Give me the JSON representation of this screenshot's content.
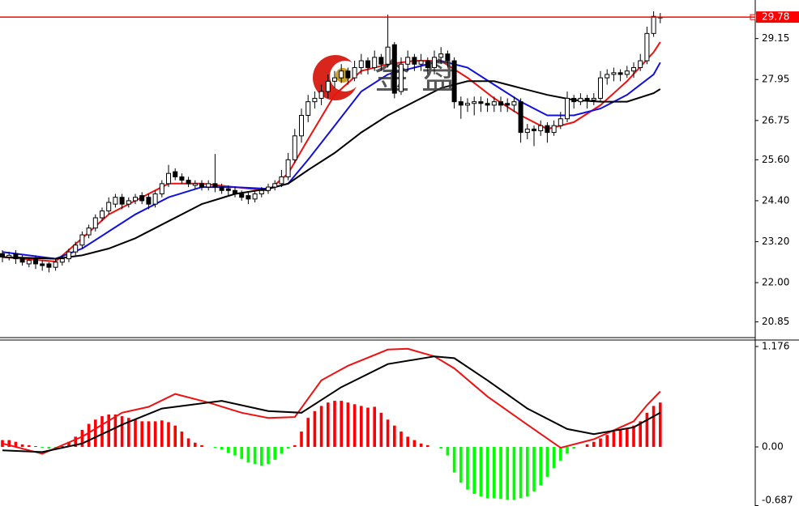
{
  "chart_data": [
    {
      "type": "candlestick",
      "open": [
        22.85,
        22.75,
        22.85,
        22.7,
        22.55,
        22.7,
        22.55,
        22.55,
        22.45,
        22.6,
        22.7,
        22.9,
        23.1,
        23.4,
        23.6,
        23.9,
        24.1,
        24.3,
        24.5,
        24.3,
        24.4,
        24.55,
        24.5,
        24.3,
        24.6,
        24.9,
        25.25,
        25.1,
        25.0,
        24.85,
        24.9,
        24.8,
        24.9,
        24.8,
        24.75,
        24.7,
        24.6,
        24.55,
        24.45,
        24.6,
        24.7,
        24.8,
        24.9,
        25.1,
        25.6,
        26.3,
        26.9,
        27.3,
        27.4,
        27.6,
        27.9,
        28.0,
        28.2,
        28.0,
        28.3,
        28.5,
        28.3,
        28.6,
        28.4,
        28.97,
        27.6,
        28.4,
        28.6,
        28.4,
        28.5,
        28.3,
        28.6,
        28.7,
        28.5,
        27.3,
        27.2,
        27.25,
        27.3,
        27.25,
        27.2,
        27.3,
        27.25,
        27.2,
        27.3,
        26.4,
        26.5,
        26.45,
        26.6,
        26.4,
        26.6,
        26.8,
        27.4,
        27.3,
        27.4,
        27.35,
        27.4,
        28.0,
        28.1,
        28.15,
        28.1,
        28.2,
        28.3,
        28.5,
        29.3,
        29.78
      ],
      "high": [
        22.95,
        22.9,
        22.95,
        22.8,
        22.75,
        22.8,
        22.65,
        22.6,
        22.7,
        22.8,
        23.0,
        23.2,
        23.5,
        23.7,
        24.0,
        24.2,
        24.5,
        24.6,
        24.6,
        24.5,
        24.6,
        24.65,
        24.6,
        24.7,
        25.0,
        25.45,
        25.35,
        25.2,
        25.1,
        25.0,
        25.0,
        25.0,
        25.77,
        24.9,
        24.85,
        24.8,
        24.7,
        24.65,
        24.7,
        24.8,
        24.9,
        25.0,
        25.3,
        25.8,
        26.5,
        27.1,
        27.5,
        27.6,
        27.8,
        28.1,
        28.2,
        28.4,
        28.3,
        28.5,
        28.7,
        28.6,
        28.8,
        28.7,
        29.85,
        29.05,
        28.6,
        28.8,
        28.7,
        28.7,
        28.6,
        28.8,
        28.9,
        28.8,
        28.6,
        27.45,
        27.4,
        27.45,
        27.45,
        27.4,
        27.45,
        27.45,
        27.4,
        27.45,
        27.4,
        26.65,
        26.6,
        26.75,
        26.7,
        26.75,
        27.0,
        27.6,
        27.5,
        27.55,
        27.5,
        27.55,
        28.2,
        28.25,
        28.3,
        28.25,
        28.35,
        28.45,
        28.7,
        29.5,
        29.95,
        29.9
      ],
      "low": [
        22.6,
        22.65,
        22.55,
        22.5,
        22.45,
        22.4,
        22.35,
        22.3,
        22.35,
        22.5,
        22.6,
        22.8,
        23.0,
        23.3,
        23.5,
        23.8,
        24.0,
        24.2,
        24.15,
        24.2,
        24.3,
        24.3,
        24.15,
        24.2,
        24.5,
        24.8,
        25.0,
        24.9,
        24.8,
        24.75,
        24.7,
        24.7,
        24.65,
        24.6,
        24.55,
        24.5,
        24.4,
        24.3,
        24.35,
        24.5,
        24.6,
        24.7,
        24.8,
        25.0,
        25.5,
        26.1,
        26.7,
        27.1,
        27.2,
        27.4,
        27.7,
        27.85,
        27.8,
        27.9,
        28.1,
        28.1,
        28.2,
        28.2,
        28.3,
        27.4,
        27.5,
        28.2,
        28.2,
        28.2,
        28.1,
        28.1,
        28.4,
        28.3,
        27.1,
        26.8,
        27.0,
        26.9,
        27.0,
        27.0,
        27.0,
        27.0,
        27.0,
        27.0,
        26.1,
        26.2,
        26.0,
        26.3,
        26.1,
        26.3,
        26.5,
        26.7,
        27.1,
        27.2,
        27.1,
        27.2,
        27.3,
        27.8,
        27.9,
        27.9,
        28.0,
        28.0,
        28.2,
        28.4,
        29.2,
        29.6
      ],
      "close": [
        22.75,
        22.8,
        22.7,
        22.6,
        22.65,
        22.55,
        22.5,
        22.45,
        22.6,
        22.7,
        22.9,
        23.1,
        23.4,
        23.6,
        23.9,
        24.1,
        24.35,
        24.5,
        24.3,
        24.4,
        24.5,
        24.4,
        24.3,
        24.6,
        24.9,
        25.2,
        25.1,
        25.0,
        24.9,
        24.9,
        24.8,
        24.9,
        24.8,
        24.7,
        24.7,
        24.6,
        24.5,
        24.45,
        24.6,
        24.7,
        24.8,
        24.9,
        25.1,
        25.6,
        26.3,
        26.9,
        27.3,
        27.4,
        27.6,
        27.9,
        28.0,
        28.2,
        28.0,
        28.3,
        28.5,
        28.3,
        28.6,
        28.4,
        28.9,
        27.55,
        28.4,
        28.6,
        28.4,
        28.5,
        28.3,
        28.6,
        28.7,
        28.5,
        27.3,
        27.2,
        27.25,
        27.3,
        27.25,
        27.2,
        27.3,
        27.2,
        27.2,
        27.3,
        26.4,
        26.5,
        26.45,
        26.6,
        26.4,
        26.6,
        26.8,
        27.4,
        27.3,
        27.4,
        27.35,
        27.4,
        28.0,
        28.1,
        28.15,
        28.1,
        28.2,
        28.3,
        28.5,
        29.3,
        29.8,
        29.78
      ],
      "up_color": "#ffffff",
      "down_color": "#000000",
      "series": [
        {
          "color": "#ee1111",
          "x": [
            0,
            8,
            12,
            16,
            20,
            25,
            30,
            35,
            40,
            43,
            46,
            50,
            54,
            58,
            62,
            66,
            70,
            74,
            78,
            82,
            86,
            90,
            94,
            98,
            99
          ],
          "values": [
            22.75,
            22.62,
            23.3,
            24.0,
            24.4,
            24.9,
            24.9,
            24.8,
            24.7,
            25.2,
            26.2,
            27.5,
            28.2,
            28.4,
            28.5,
            28.5,
            28.0,
            27.4,
            26.9,
            26.5,
            26.7,
            27.2,
            27.9,
            28.75,
            29.05
          ]
        },
        {
          "color": "#1111dd",
          "x": [
            0,
            8,
            12,
            16,
            20,
            25,
            30,
            35,
            40,
            43,
            46,
            50,
            54,
            58,
            62,
            66,
            70,
            74,
            78,
            82,
            86,
            90,
            94,
            98,
            99
          ],
          "values": [
            22.9,
            22.7,
            23.0,
            23.5,
            24.0,
            24.5,
            24.8,
            24.8,
            24.75,
            24.9,
            25.6,
            26.6,
            27.6,
            28.1,
            28.3,
            28.5,
            28.3,
            27.8,
            27.3,
            26.9,
            26.9,
            27.1,
            27.5,
            28.1,
            28.45
          ]
        },
        {
          "color": "#000000",
          "x": [
            0,
            8,
            12,
            16,
            20,
            25,
            30,
            35,
            40,
            43,
            46,
            50,
            54,
            58,
            62,
            66,
            70,
            74,
            78,
            82,
            86,
            90,
            94,
            98,
            99
          ],
          "values": [
            22.75,
            22.7,
            22.8,
            23.0,
            23.3,
            23.8,
            24.3,
            24.6,
            24.75,
            24.9,
            25.3,
            25.8,
            26.4,
            26.9,
            27.3,
            27.7,
            27.9,
            27.9,
            27.7,
            27.5,
            27.35,
            27.3,
            27.3,
            27.55,
            27.67
          ]
        }
      ],
      "ylim": [
        20.39,
        30.28
      ],
      "yticks": [
        29.15,
        27.95,
        26.75,
        {
          "value": 25.6,
          "label": "25.60"
        },
        {
          "value": 24.4,
          "label": "24.40"
        },
        {
          "value": 23.2,
          "label": "23.20"
        },
        {
          "value": 22,
          "label": "22.00"
        },
        20.85
      ],
      "last_price": 29.78,
      "last_price_color": "#ff0000",
      "watermark": [
        "金",
        "盘"
      ]
    },
    {
      "type": "macd",
      "values": [
        0.08,
        0.08,
        0.06,
        0.03,
        0.02,
        0.01,
        -0.01,
        -0.02,
        -0.01,
        0.01,
        0.06,
        0.12,
        0.2,
        0.27,
        0.32,
        0.36,
        0.38,
        0.38,
        0.36,
        0.34,
        0.32,
        0.3,
        0.3,
        0.3,
        0.31,
        0.29,
        0.25,
        0.18,
        0.1,
        0.05,
        0.02,
        0.0,
        -0.01,
        -0.03,
        -0.07,
        -0.1,
        -0.14,
        -0.18,
        -0.2,
        -0.22,
        -0.2,
        -0.15,
        -0.08,
        -0.02,
        0.02,
        0.18,
        0.34,
        0.42,
        0.48,
        0.52,
        0.54,
        0.54,
        0.52,
        0.5,
        0.48,
        0.46,
        0.47,
        0.4,
        0.32,
        0.25,
        0.18,
        0.12,
        0.08,
        0.04,
        0.02,
        0.0,
        -0.02,
        -0.1,
        -0.3,
        -0.42,
        -0.5,
        -0.55,
        -0.58,
        -0.6,
        -0.6,
        -0.61,
        -0.62,
        -0.62,
        -0.6,
        -0.58,
        -0.52,
        -0.45,
        -0.35,
        -0.25,
        -0.16,
        -0.08,
        -0.02,
        0.0,
        0.03,
        0.06,
        0.1,
        0.14,
        0.18,
        0.2,
        0.22,
        0.25,
        0.3,
        0.4,
        0.48,
        0.52
      ],
      "positive_color": "#ff0000",
      "negative_color": "#00ff00",
      "series": [
        {
          "color": "#ee1111",
          "x": [
            0,
            6,
            12,
            18,
            22,
            26,
            31,
            36,
            40,
            44,
            48,
            52,
            58,
            61,
            65,
            68,
            73,
            79,
            84,
            89,
            95,
            97,
            99
          ],
          "values": [
            0.04,
            -0.08,
            0.12,
            0.4,
            0.47,
            0.62,
            0.52,
            0.4,
            0.34,
            0.35,
            0.78,
            0.95,
            1.14,
            1.15,
            1.06,
            0.92,
            0.59,
            0.26,
            -0.01,
            0.09,
            0.3,
            0.49,
            0.65
          ]
        },
        {
          "color": "#000000",
          "x": [
            0,
            6,
            12,
            18,
            24,
            33,
            40,
            45,
            51,
            58,
            65,
            68,
            73,
            79,
            85,
            89,
            95,
            99
          ],
          "values": [
            -0.04,
            -0.06,
            0.04,
            0.26,
            0.45,
            0.54,
            0.42,
            0.4,
            0.7,
            0.97,
            1.06,
            1.04,
            0.78,
            0.45,
            0.21,
            0.15,
            0.23,
            0.4
          ]
        }
      ],
      "ylim": [
        -0.692,
        1.252
      ],
      "yticks": [
        1.176,
        {
          "value": 0,
          "label": "0.00"
        },
        -0.687
      ]
    }
  ]
}
